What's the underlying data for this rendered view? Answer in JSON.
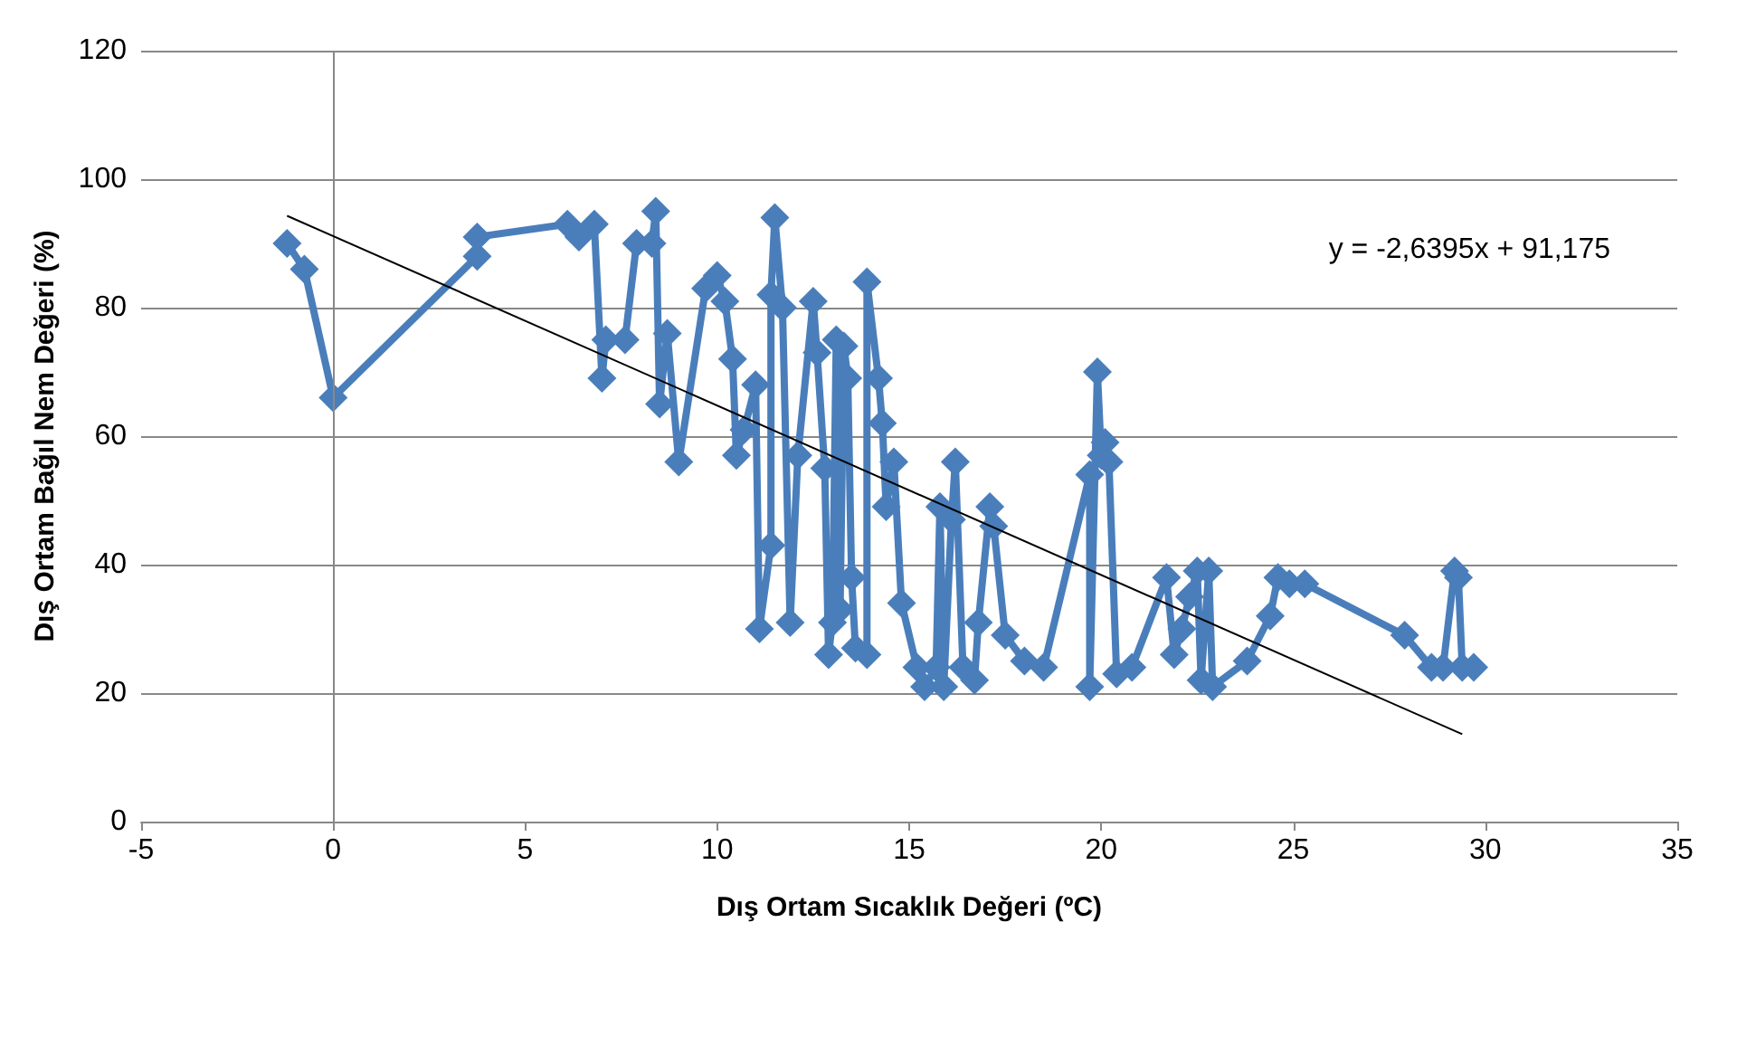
{
  "chart_data": {
    "type": "line",
    "xlabel": "Dış Ortam Sıcaklık Değeri (ºC)",
    "ylabel": "Dış Ortam Bağıl Nem Değeri (%)",
    "xlim": [
      -5,
      35
    ],
    "xticks": [
      -5,
      0,
      5,
      10,
      15,
      20,
      25,
      30,
      35
    ],
    "ylim": [
      0,
      120
    ],
    "yticks": [
      0,
      20,
      40,
      60,
      80,
      100,
      120
    ],
    "grid": "y",
    "ref_lines": [
      {
        "axis": "x",
        "value": 0,
        "color": "#888888"
      }
    ],
    "annotations": [
      "y = -2,6395x + 91,175"
    ],
    "series": [
      {
        "color": "#4a7ebb",
        "marker": "diamond",
        "x": [
          -1.2,
          -0.75,
          0,
          3.75,
          3.75,
          6.1,
          6.4,
          6.8,
          7.0,
          7.1,
          7.6,
          7.9,
          8.3,
          8.4,
          8.5,
          8.7,
          9.0,
          9.7,
          10,
          10.2,
          10.4,
          10.5,
          10.7,
          11.0,
          11.1,
          11.4,
          11.4,
          11.5,
          11.7,
          11.9,
          12.1,
          12.5,
          12.6,
          12.8,
          12.9,
          13,
          13.1,
          13.2,
          13.3,
          13.4,
          13.5,
          13.6,
          13.9,
          13.9,
          14.2,
          14.3,
          14.4,
          14.6,
          14.8,
          15.2,
          15.4,
          15.7,
          15.8,
          15.9,
          16.1,
          16.2,
          16.4,
          16.7,
          16.8,
          17.1,
          17.2,
          17.5,
          18,
          18.5,
          19.7,
          19.7,
          19.9,
          20,
          20.1,
          20.2,
          20.4,
          20.8,
          21.7,
          21.9,
          22.1,
          22.3,
          22.5,
          22.6,
          22.8,
          22.9,
          23.8,
          24.4,
          24.6,
          24.9,
          25.3,
          27.9,
          28.6,
          28.9,
          29.2,
          29.3,
          29.4,
          29.7
        ],
        "values": [
          90,
          86,
          66,
          88,
          91,
          93,
          91,
          93,
          69,
          75,
          75,
          90,
          90,
          95,
          65,
          76,
          56,
          83,
          85,
          81,
          72,
          57,
          61,
          68,
          30,
          43,
          82,
          94,
          80,
          31,
          57,
          81,
          73,
          55,
          26,
          31,
          75,
          33,
          74,
          69,
          38,
          27,
          26,
          84,
          69,
          62,
          49,
          56,
          34,
          24,
          21,
          24,
          49,
          21,
          47,
          56,
          24,
          22,
          31,
          49,
          46,
          29,
          25,
          24,
          54,
          21,
          70,
          57,
          59,
          56,
          23,
          24,
          38,
          26,
          30,
          35,
          39,
          22,
          39,
          21,
          25,
          32,
          38,
          37,
          37,
          29,
          24,
          24,
          39,
          38,
          24,
          24
        ]
      },
      {
        "type": "line",
        "color": "#000000",
        "marker": "none",
        "x": [
          -1.2,
          29.4
        ],
        "values": [
          94.3,
          13.6
        ]
      }
    ]
  }
}
